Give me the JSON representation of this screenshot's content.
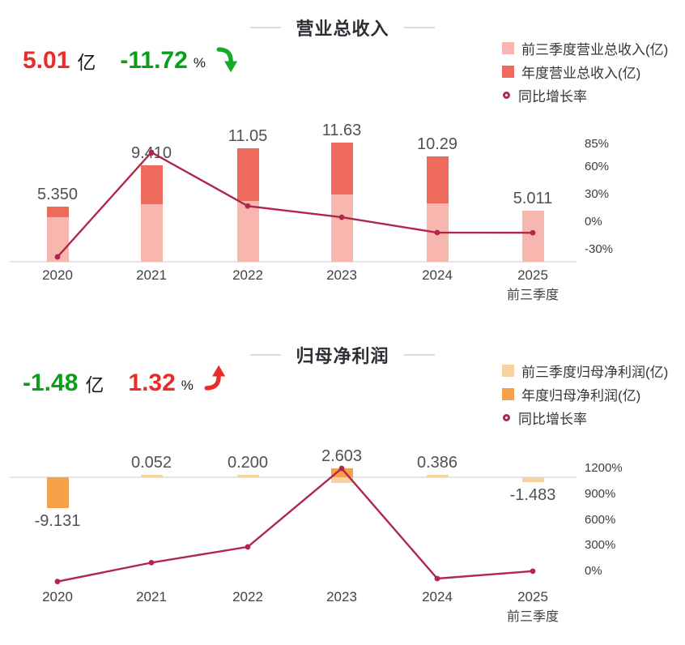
{
  "sections": [
    {
      "title": "营业总收入",
      "stats": {
        "value": "5.01",
        "unit": "亿",
        "change": "-11.72",
        "change_unit": "%",
        "value_color": "#ea2b2b",
        "change_color": "#0a9f18",
        "arrow": "down",
        "arrow_color": "#17a928"
      },
      "legend": [
        {
          "label": "前三季度营业总收入(亿)",
          "marker": "square",
          "series": "q3",
          "color": "#f7b6ae"
        },
        {
          "label": "年度营业总收入(亿)",
          "marker": "square",
          "series": "annual",
          "color": "#ee6a5c"
        },
        {
          "label": "同比增长率",
          "marker": "ring",
          "series": "growth",
          "color": "#b0274d"
        }
      ],
      "chart_data": {
        "type": "bar+line",
        "categories": [
          "2020",
          "2021",
          "2022",
          "2023",
          "2024",
          "2025"
        ],
        "last_category_note": "前三季度",
        "bar_unit": "亿",
        "bars": [
          {
            "year": "2020",
            "label": "5.350",
            "label_pos": "above",
            "segments": [
              {
                "series": "annual",
                "value": 5.35
              },
              {
                "series": "q3",
                "value": 4.35
              }
            ]
          },
          {
            "year": "2021",
            "label": "9.410",
            "label_pos": "above",
            "segments": [
              {
                "series": "annual",
                "value": 9.41
              },
              {
                "series": "q3",
                "value": 5.58
              }
            ]
          },
          {
            "year": "2022",
            "label": "11.05",
            "label_pos": "above",
            "segments": [
              {
                "series": "annual",
                "value": 11.05
              },
              {
                "series": "q3",
                "value": 5.94
              }
            ]
          },
          {
            "year": "2023",
            "label": "11.63",
            "label_pos": "above",
            "segments": [
              {
                "series": "annual",
                "value": 11.63
              },
              {
                "series": "q3",
                "value": 6.55
              }
            ]
          },
          {
            "year": "2024",
            "label": "10.29",
            "label_pos": "above",
            "segments": [
              {
                "series": "annual",
                "value": 10.29
              },
              {
                "series": "q3",
                "value": 5.68
              }
            ]
          },
          {
            "year": "2025",
            "label": "5.011",
            "label_pos": "above",
            "segments": [
              {
                "series": "q3",
                "value": 5.011
              }
            ]
          }
        ],
        "line_series": {
          "name": "同比增长率",
          "unit": "%",
          "values": [
            -38,
            75.9,
            17.4,
            5.2,
            -11.5,
            -11.72
          ]
        },
        "y2_ticks": [
          85,
          60,
          30,
          0,
          -30
        ],
        "y2_tick_suffix": "%",
        "series_colors": {
          "q3": "#f7b6ae",
          "annual": "#ee6a5c",
          "line": "#b0274d"
        }
      }
    },
    {
      "title": "归母净利润",
      "stats": {
        "value": "-1.48",
        "unit": "亿",
        "change": "1.32",
        "change_unit": "%",
        "value_color": "#0a9f18",
        "change_color": "#ea2b2b",
        "arrow": "up",
        "arrow_color": "#ea2b2b"
      },
      "legend": [
        {
          "label": "前三季度归母净利润(亿)",
          "marker": "square",
          "series": "q3",
          "color": "#f8d1a2"
        },
        {
          "label": "年度归母净利润(亿)",
          "marker": "square",
          "series": "annual",
          "color": "#f5a04a"
        },
        {
          "label": "同比增长率",
          "marker": "ring",
          "series": "growth",
          "color": "#b0274d"
        }
      ],
      "chart_data": {
        "type": "bar+line",
        "categories": [
          "2020",
          "2021",
          "2022",
          "2023",
          "2024",
          "2025"
        ],
        "last_category_note": "前三季度",
        "bar_unit": "亿",
        "bars": [
          {
            "year": "2020",
            "label": "-9.131",
            "label_pos": "below",
            "segments": [
              {
                "series": "annual",
                "value": -9.131
              }
            ]
          },
          {
            "year": "2021",
            "label": "0.052",
            "label_pos": "above",
            "segments": [
              {
                "series": "q3",
                "value": 0.052
              }
            ]
          },
          {
            "year": "2022",
            "label": "0.200",
            "label_pos": "above",
            "segments": [
              {
                "series": "q3",
                "value": 0.2
              }
            ]
          },
          {
            "year": "2023",
            "label": "2.603",
            "label_pos": "above",
            "segments": [
              {
                "series": "annual",
                "value": 2.603
              },
              {
                "series": "q3",
                "value": -1.7
              }
            ]
          },
          {
            "year": "2024",
            "label": "0.386",
            "label_pos": "above",
            "segments": [
              {
                "series": "q3",
                "value": 0.386
              }
            ]
          },
          {
            "year": "2025",
            "label": "-1.483",
            "label_pos": "below",
            "segments": [
              {
                "series": "q3",
                "value": -1.483
              }
            ]
          }
        ],
        "line_series": {
          "name": "同比增长率",
          "unit": "%",
          "values": [
            -120,
            100.6,
            284.6,
            1201.5,
            -85.2,
            1.32
          ]
        },
        "y2_ticks": [
          1200,
          900,
          600,
          300,
          0
        ],
        "y2_tick_suffix": "%",
        "series_colors": {
          "q3": "#f8d1a2",
          "annual": "#f5a04a",
          "line": "#b0274d"
        }
      }
    }
  ]
}
